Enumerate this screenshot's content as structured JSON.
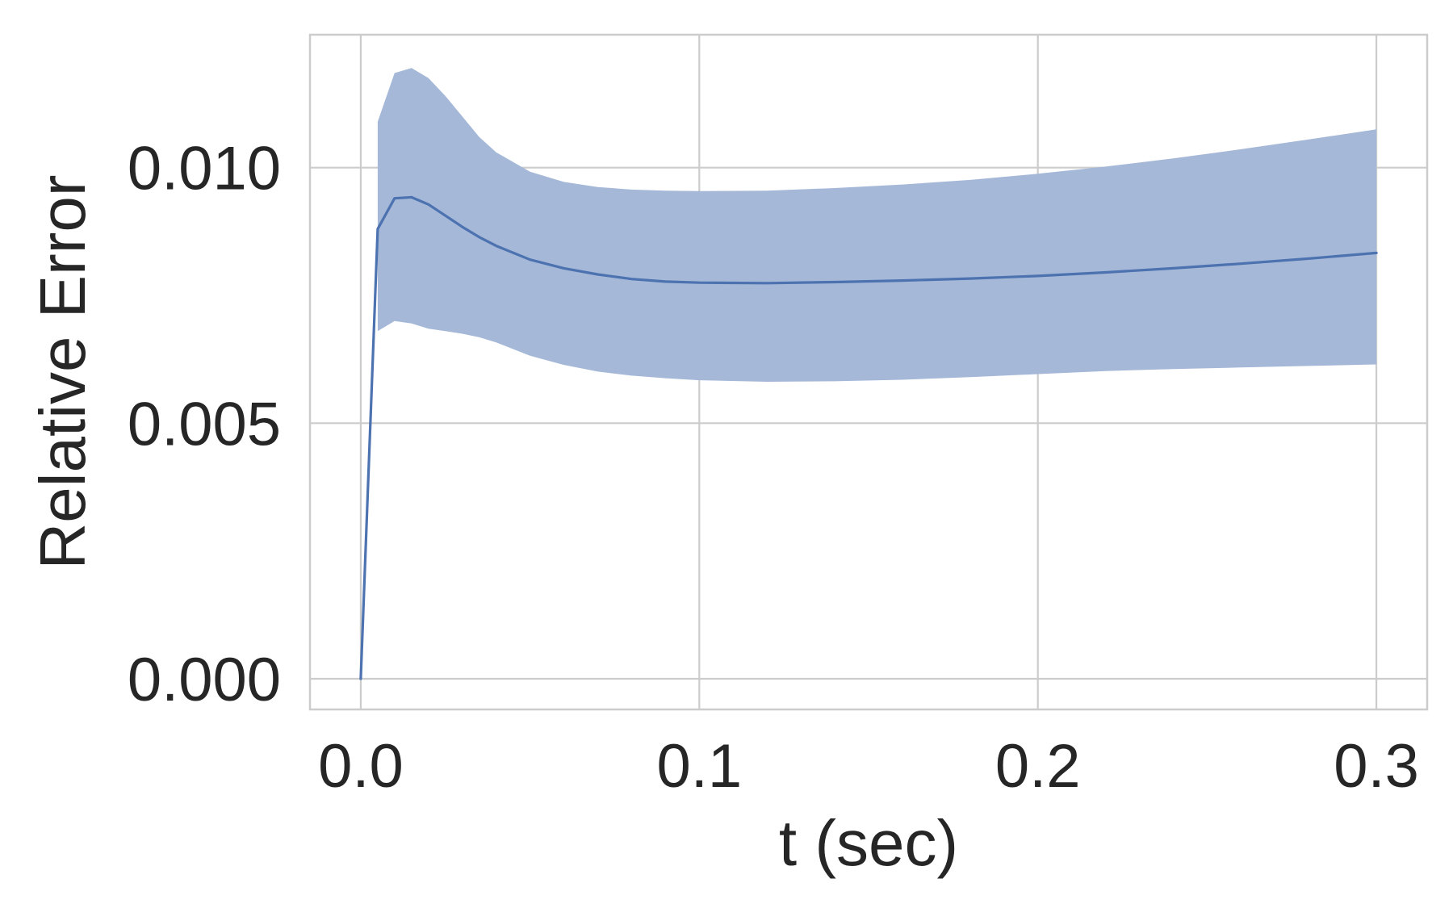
{
  "chart_data": {
    "type": "line",
    "title": "",
    "xlabel": "t (sec)",
    "ylabel": "Relative Error",
    "xlim": [
      -0.015,
      0.315
    ],
    "ylim": [
      -0.0006,
      0.0126
    ],
    "xticks": [
      0.0,
      0.1,
      0.2,
      0.3
    ],
    "xtick_labels": [
      "0.0",
      "0.1",
      "0.2",
      "0.3"
    ],
    "yticks": [
      0.0,
      0.005,
      0.01
    ],
    "ytick_labels": [
      "0.000",
      "0.005",
      "0.010"
    ],
    "grid": true,
    "legend": "none",
    "colors": {
      "line": "#4c72b0",
      "band": "#a5b8d8",
      "grid": "#cccccc",
      "text": "#262626"
    },
    "series": [
      {
        "x": [
          0.0,
          0.005,
          0.01,
          0.015,
          0.02,
          0.025,
          0.03,
          0.035,
          0.04,
          0.05,
          0.06,
          0.07,
          0.08,
          0.09,
          0.1,
          0.12,
          0.14,
          0.16,
          0.18,
          0.2,
          0.22,
          0.24,
          0.26,
          0.28,
          0.3
        ],
        "values": [
          0.0,
          0.0088,
          0.0094,
          0.00942,
          0.00928,
          0.00906,
          0.00884,
          0.00864,
          0.00847,
          0.0082,
          0.00803,
          0.00791,
          0.00782,
          0.00777,
          0.00775,
          0.00774,
          0.00776,
          0.00779,
          0.00783,
          0.00788,
          0.00795,
          0.00803,
          0.00812,
          0.00822,
          0.00833
        ]
      }
    ],
    "band": {
      "x": [
        0.005,
        0.01,
        0.015,
        0.02,
        0.025,
        0.03,
        0.035,
        0.04,
        0.05,
        0.06,
        0.07,
        0.08,
        0.09,
        0.1,
        0.12,
        0.14,
        0.16,
        0.18,
        0.2,
        0.22,
        0.24,
        0.26,
        0.28,
        0.3
      ],
      "upper": [
        0.0109,
        0.01185,
        0.01195,
        0.01175,
        0.0114,
        0.011,
        0.0106,
        0.0103,
        0.00992,
        0.00972,
        0.00962,
        0.00957,
        0.00955,
        0.00954,
        0.00955,
        0.0096,
        0.00967,
        0.00976,
        0.00988,
        0.01002,
        0.01018,
        0.01036,
        0.01055,
        0.01075
      ],
      "lower": [
        0.0068,
        0.007,
        0.00695,
        0.00685,
        0.0068,
        0.00675,
        0.00668,
        0.00658,
        0.00632,
        0.00614,
        0.00601,
        0.00593,
        0.00588,
        0.00584,
        0.00581,
        0.00582,
        0.00585,
        0.0059,
        0.00596,
        0.00602,
        0.00606,
        0.00609,
        0.00612,
        0.00615
      ]
    }
  }
}
